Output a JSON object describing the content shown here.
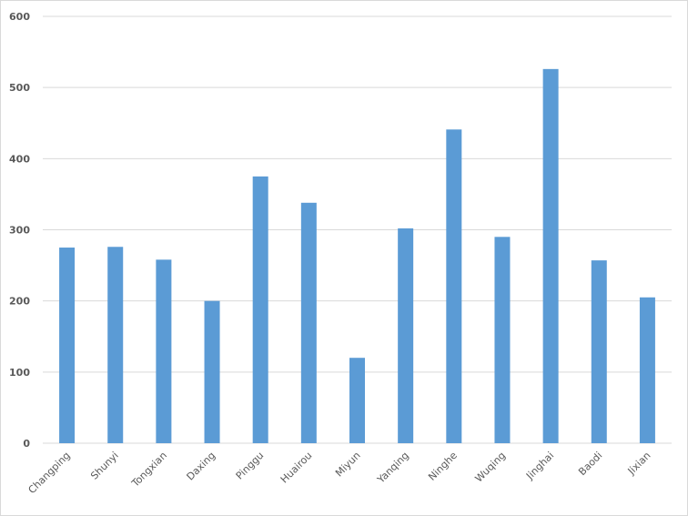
{
  "chart_data": {
    "type": "bar",
    "categories": [
      "Changping",
      "Shunyi",
      "Tongxian",
      "Daxing",
      "Pinggu",
      "Huairou",
      "Miyun",
      "Yanqing",
      "Ninghe",
      "Wuqing",
      "Jinghai",
      "Baodi",
      "Jixian"
    ],
    "values": [
      275,
      276,
      258,
      200,
      375,
      338,
      120,
      302,
      441,
      290,
      526,
      257,
      205
    ],
    "color": "#5b9bd5",
    "ylim": [
      0,
      600
    ],
    "yticks": [
      0,
      100,
      200,
      300,
      400,
      500,
      600
    ],
    "grid": true
  }
}
